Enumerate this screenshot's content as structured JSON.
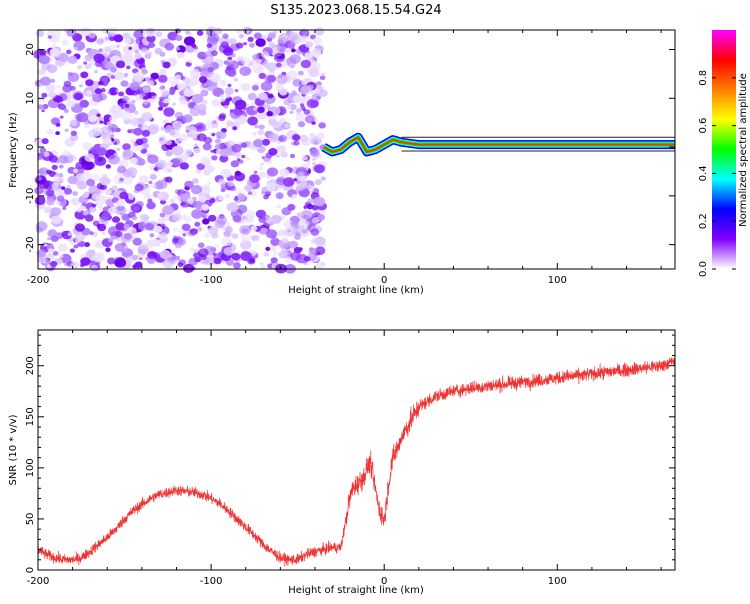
{
  "title": "S135.2023.068.15.54.G24",
  "chart_data": [
    {
      "type": "heatmap",
      "name": "spectrogram",
      "xlabel": "Height of straight line (km)",
      "ylabel": "Frequency (Hz)",
      "xlim": [
        -200,
        168
      ],
      "ylim": [
        -25,
        24
      ],
      "xticks": [
        -200,
        -100,
        0,
        100
      ],
      "yticks": [
        -20,
        -10,
        0,
        10,
        20
      ],
      "colorbar": {
        "label": "Normalized spectral amplitude",
        "range": [
          0,
          1
        ],
        "ticks": [
          0.0,
          0.2,
          0.4,
          0.6,
          0.8
        ],
        "colormap": [
          "#ffffff",
          "#8000ff",
          "#0000ff",
          "#00ffff",
          "#00ff00",
          "#ffff00",
          "#ff8000",
          "#ff0000",
          "#ff00ff"
        ]
      },
      "noise_region_x": [
        -200,
        -35
      ],
      "signal_line": {
        "x": [
          -35,
          -30,
          -25,
          -20,
          -15,
          -10,
          -5,
          0,
          5,
          10,
          20,
          40,
          60,
          80,
          100,
          120,
          140,
          168
        ],
        "frequency": [
          0,
          -1,
          -0.5,
          1,
          2,
          -1,
          -0.5,
          0.5,
          1.5,
          1,
          0.5,
          0.5,
          0.5,
          0.5,
          0.5,
          0.5,
          0.5,
          0.5
        ]
      },
      "grid": false
    },
    {
      "type": "line",
      "name": "snr",
      "xlabel": "Height of straight line (km)",
      "ylabel": "SNR (10 * v/v)",
      "xlim": [
        -200,
        168
      ],
      "ylim": [
        0,
        235
      ],
      "xticks": [
        -200,
        -100,
        0,
        100
      ],
      "yticks": [
        0,
        50,
        100,
        150,
        200
      ],
      "color": "#ee3333",
      "x": [
        -200,
        -195,
        -190,
        -185,
        -180,
        -175,
        -170,
        -165,
        -160,
        -155,
        -150,
        -145,
        -140,
        -135,
        -130,
        -125,
        -120,
        -115,
        -110,
        -105,
        -100,
        -95,
        -90,
        -85,
        -80,
        -75,
        -70,
        -65,
        -60,
        -55,
        -50,
        -45,
        -40,
        -35,
        -30,
        -25,
        -22,
        -20,
        -18,
        -15,
        -12,
        -10,
        -8,
        -5,
        -3,
        0,
        3,
        5,
        8,
        10,
        15,
        20,
        25,
        30,
        40,
        50,
        60,
        70,
        80,
        90,
        100,
        110,
        120,
        130,
        140,
        150,
        160,
        168
      ],
      "y": [
        20,
        15,
        12,
        10,
        10,
        12,
        18,
        25,
        32,
        40,
        50,
        58,
        64,
        70,
        74,
        76,
        78,
        77,
        76,
        74,
        70,
        65,
        58,
        50,
        42,
        34,
        25,
        18,
        12,
        10,
        10,
        15,
        18,
        20,
        22,
        22,
        50,
        70,
        80,
        85,
        90,
        100,
        105,
        80,
        60,
        50,
        90,
        110,
        120,
        130,
        145,
        160,
        165,
        170,
        175,
        178,
        180,
        182,
        184,
        186,
        188,
        190,
        192,
        194,
        196,
        198,
        200,
        205
      ],
      "grid": false
    }
  ]
}
